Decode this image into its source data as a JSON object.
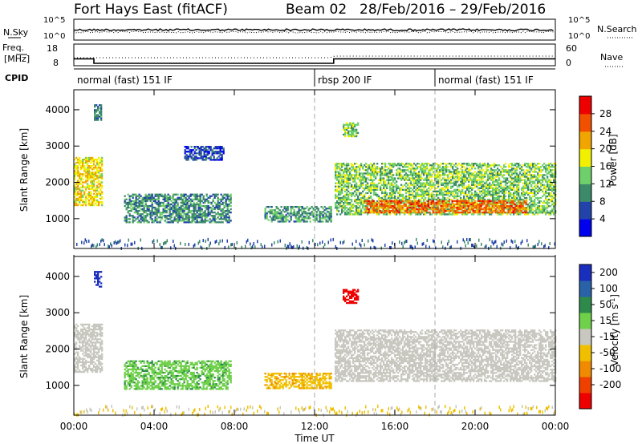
{
  "chart_data": {
    "type": "heatmap",
    "title": "Fort Hays East (fitACF)",
    "beam": "Beam 02",
    "date_range": "28/Feb/2016 – 29/Feb/2016",
    "xlabel": "Time UT",
    "xlim_hours": [
      0,
      24
    ],
    "x_ticks": [
      "00:00",
      "04:00",
      "08:00",
      "12:00",
      "16:00",
      "20:00",
      "00:00"
    ],
    "x_tick_hours": [
      0,
      4,
      8,
      12,
      16,
      20,
      24
    ],
    "ylabel": "Slant Range [km]",
    "ylim_km": [
      180,
      4550
    ],
    "y_ticks": [
      "1000",
      "2000",
      "3000",
      "4000"
    ],
    "y_tick_values": [
      1000,
      2000,
      3000,
      4000
    ],
    "status_panels": {
      "nsky_label": "N.Sky",
      "nsky_scale": [
        "10^5",
        "10^0"
      ],
      "nsearch_label": "N.Search",
      "nsearch_scale": [
        "10^5",
        "10^0"
      ],
      "freq_label": "Freq.",
      "freq_unit": "[MHz]",
      "freq_scale": [
        "18",
        "8"
      ],
      "nave_label": "Nave",
      "nave_scale": [
        "60",
        "0"
      ],
      "cpid_label": "CPID",
      "freq_steps": [
        {
          "h0": 0.0,
          "h1": 1.0,
          "mhz": 11.2
        },
        {
          "h0": 1.0,
          "h1": 12.95,
          "mhz": 9.1
        },
        {
          "h0": 12.95,
          "h1": 24.0,
          "mhz": 11.2
        }
      ]
    },
    "cpid_segments": [
      {
        "label": "normal (fast) 151 IF",
        "start_hour": 0,
        "end_hour": 12
      },
      {
        "label": "rbsp 200 IF",
        "start_hour": 12,
        "end_hour": 18
      },
      {
        "label": "normal (fast) 151 IF",
        "start_hour": 18,
        "end_hour": 24
      }
    ],
    "panels": [
      {
        "parameter": "Power",
        "colorbar_label": "Power [dB]",
        "colorbar_ticks": [
          "4",
          "8",
          "12",
          "16",
          "20",
          "24",
          "28"
        ],
        "colorbar_colors": [
          "#0000ee",
          "#2244aa",
          "#3d8a6a",
          "#6fcf6a",
          "#f0f000",
          "#f0a500",
          "#f05000",
          "#ee0000"
        ],
        "regions": [
          {
            "t0": 0.0,
            "t1": 1.4,
            "r0": 1350,
            "r1": 2700,
            "value_db": 19
          },
          {
            "t0": 1.0,
            "t1": 1.4,
            "r0": 3700,
            "r1": 4150,
            "value_db": 9
          },
          {
            "t0": 2.5,
            "t1": 7.8,
            "r0": 880,
            "r1": 1650,
            "value_db": 10
          },
          {
            "t0": 5.5,
            "t1": 7.5,
            "r0": 2600,
            "r1": 3000,
            "value_db": 6
          },
          {
            "t0": 9.5,
            "t1": 12.8,
            "r0": 900,
            "r1": 1350,
            "value_db": 11
          },
          {
            "t0": 13.0,
            "t1": 24.0,
            "r0": 1100,
            "r1": 2500,
            "value_db": 14
          },
          {
            "t0": 14.5,
            "t1": 22.5,
            "r0": 1150,
            "r1": 1500,
            "value_db": 25
          },
          {
            "t0": 13.4,
            "t1": 14.2,
            "r0": 3250,
            "r1": 3650,
            "value_db": 15
          }
        ]
      },
      {
        "parameter": "Velocity",
        "colorbar_label": "Velocity [m s^-1]",
        "colorbar_ticks": [
          "200",
          "100",
          "50",
          "15",
          "-15",
          "-50",
          "-100",
          "-200"
        ],
        "colorbar_colors": [
          "#1a2ebd",
          "#2a62a8",
          "#2e8a4a",
          "#6fd04a",
          "#c8c8c0",
          "#f0c000",
          "#f08a00",
          "#f04000",
          "#ee0000"
        ],
        "regions": [
          {
            "t0": 0.0,
            "t1": 1.4,
            "r0": 1350,
            "r1": 2700,
            "value_ms": 0
          },
          {
            "t0": 1.0,
            "t1": 1.4,
            "r0": 3700,
            "r1": 4150,
            "value_ms": 220
          },
          {
            "t0": 2.5,
            "t1": 7.8,
            "r0": 880,
            "r1": 1650,
            "value_ms": 40
          },
          {
            "t0": 9.5,
            "t1": 12.8,
            "r0": 900,
            "r1": 1350,
            "value_ms": -40
          },
          {
            "t0": 13.0,
            "t1": 24.0,
            "r0": 1100,
            "r1": 2500,
            "value_ms": 0
          },
          {
            "t0": 13.4,
            "t1": 14.2,
            "r0": 3250,
            "r1": 3650,
            "value_ms": -250
          }
        ]
      }
    ]
  }
}
